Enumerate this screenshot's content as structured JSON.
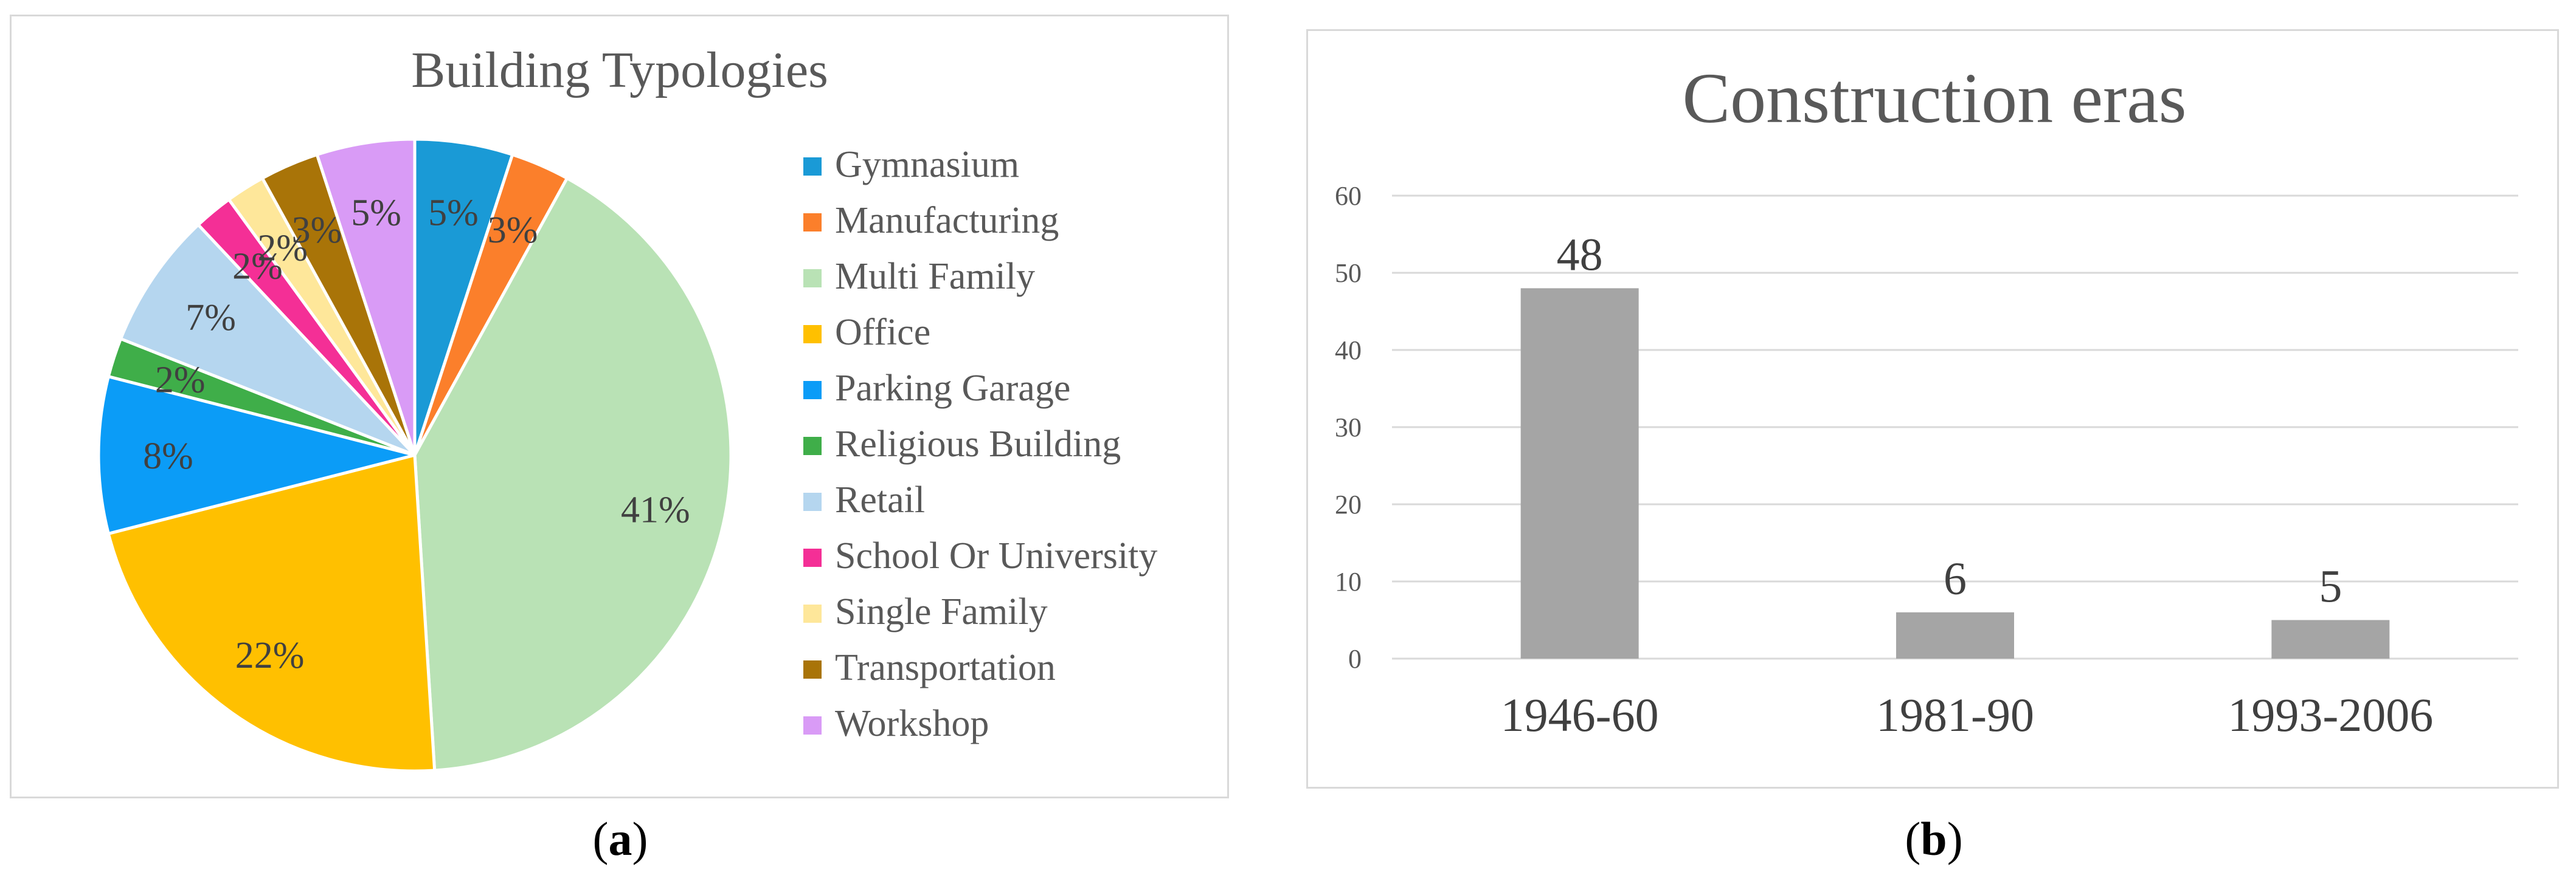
{
  "captions": {
    "a": "a",
    "b": "b"
  },
  "chart_data": [
    {
      "type": "pie",
      "title": "Building Typologies",
      "legend_position": "right",
      "categories": [
        "Gymnasium",
        "Manufacturing",
        "Multi Family",
        "Office",
        "Parking Garage",
        "Religious Building",
        "Retail",
        "School Or University",
        "Single Family",
        "Transportation",
        "Workshop"
      ],
      "values": [
        5,
        3,
        41,
        22,
        8,
        2,
        7,
        2,
        2,
        3,
        5
      ],
      "labels": [
        "5%",
        "3%",
        "41%",
        "22%",
        "8%",
        "2%",
        "7%",
        "2%",
        "2%",
        "3%",
        "5%"
      ],
      "colors": [
        "#1a9ad6",
        "#fb7f2b",
        "#b9e2b5",
        "#ffc000",
        "#0b9cf7",
        "#3fae49",
        "#b5d6ef",
        "#f42f96",
        "#fee79a",
        "#a97408",
        "#d99bf6"
      ]
    },
    {
      "type": "bar",
      "title": "Construction eras",
      "categories": [
        "1946-60",
        "1981-90",
        "1993-2006"
      ],
      "values": [
        48,
        6,
        5
      ],
      "data_labels": [
        "48",
        "6",
        "5"
      ],
      "ylim": [
        0,
        60
      ],
      "yticks": [
        "0",
        "10",
        "20",
        "30",
        "40",
        "50",
        "60"
      ],
      "grid": true,
      "bar_color": "#a5a5a5"
    }
  ]
}
